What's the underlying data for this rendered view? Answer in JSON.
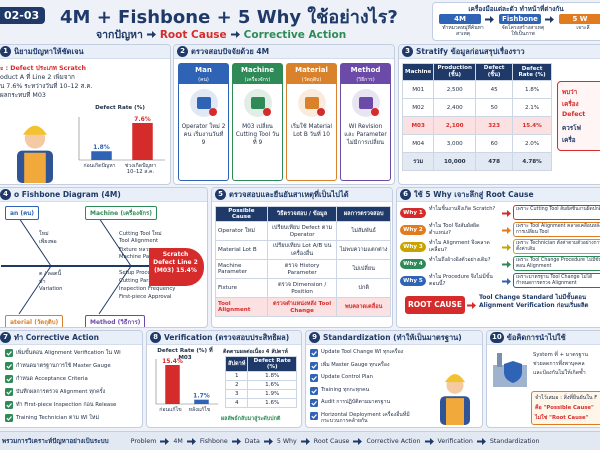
{
  "header": {
    "badge": "02-03",
    "title": "4M + Fishbone + 5 Why ใช้อย่างไร?",
    "flow": [
      "จากปัญหา",
      "Root Cause",
      "Corrective Action"
    ]
  },
  "tools": {
    "title": "เครื่องมือแต่ละตัว ทำหน้าที่ต่างกัน",
    "items": [
      {
        "name": "4M",
        "desc": "ทำหมวดหมู่ที่ค้นหาสาเหตุ"
      },
      {
        "name": "Fishbone",
        "desc": "จัดโครงสร้างสาเหตุให้เป็นภาพ"
      },
      {
        "name": "5 W",
        "desc": "เจาะลึ"
      }
    ]
  },
  "problem": {
    "number": "1",
    "title": "นิยามปัญหาให้ชัดเจน",
    "lines": [
      "ะ : Defect ประเภท Scratch",
      "oduct A ที่ Line 2 เพิ่มจาก",
      "น 7.6% ระหว่างวันที่ 10–12 ส.ค.",
      "ผลกระทบที่ M03"
    ],
    "chart": {
      "type": "bar",
      "title": "Defect Rate (%)",
      "categories": [
        "ก่อนเกิดปัญหา",
        "ช่วงเกิดปัญหา 10–12 ส.ค."
      ],
      "values": [
        1.8,
        7.6
      ],
      "value_labels": [
        "1.8%",
        "7.6%"
      ],
      "colors": [
        "#2f63b5",
        "#d62b2b"
      ]
    }
  },
  "fourM": {
    "number": "2",
    "title": "ตรวจสอบปัจจัยด้วย 4M",
    "columns": [
      {
        "name": "Man",
        "sub": "(คน)",
        "finding": "Operator ใหม่ 2 คน เริ่มงานวันที่ 9"
      },
      {
        "name": "Machine",
        "sub": "(เครื่องจักร)",
        "finding": "M03 เปลี่ยน Cutting Tool วันที่ 9"
      },
      {
        "name": "Material",
        "sub": "(วัตถุดิบ)",
        "finding": "เริ่มใช้ Material Lot B วันที่ 10"
      },
      {
        "name": "Method",
        "sub": "(วิธีการ)",
        "finding": "WI Revision และ Parameter ไม่มีการเปลี่ยน"
      }
    ]
  },
  "stratify": {
    "number": "3",
    "title": "Stratify ข้อมูลก่อนสรุปเรื่องราว",
    "header": [
      "Machine",
      "Production (ชิ้น)",
      "Defect (ชิ้น)",
      "Defect Rate (%)"
    ],
    "rows": [
      [
        "M01",
        "2,500",
        "45",
        "1.8%"
      ],
      [
        "M02",
        "2,400",
        "50",
        "2.1%"
      ],
      [
        "M03",
        "2,100",
        "323",
        "15.4%"
      ],
      [
        "M04",
        "3,000",
        "60",
        "2.0%"
      ],
      [
        "รวม",
        "10,000",
        "478",
        "4.78%"
      ]
    ],
    "note": [
      "พบว่า",
      "เครื่อง",
      "Defect",
      "ควรโฟ",
      "เครื่อ"
    ]
  },
  "fishbone": {
    "number": "4",
    "title": "o Fishbone Diagram (4M)",
    "head": "Scratch Defect Line 2 (M03) 15.4%",
    "bones": [
      {
        "name": "an (คน)",
        "items": [
          "ใหม่",
          "เพียงพอ"
        ]
      },
      {
        "name": "Machine (เครื่องจักร)",
        "items": [
          "Cutting Tool ใหม่",
          "Tool Alignment",
          "Fixture หลวม",
          "Machine Parameter"
        ]
      },
      {
        "name": "aterial (วัตถุดิบ)",
        "items": [
          "ต / ลอตนี้",
          "ข้า",
          "Variation"
        ]
      },
      {
        "name": "Method (วิธีการ)",
        "items": [
          "Setup Procedure",
          "Cutting Parameter",
          "Inspection Frequency",
          "First-piece Approval"
        ]
      }
    ]
  },
  "verify": {
    "number": "5",
    "title": "ตรวจสอบและยืนยันสาเหตุที่เป็นไปได้",
    "header": [
      "Possible Cause",
      "วิธีตรวจสอบ / ข้อมูล",
      "ผลการตรวจสอบ"
    ],
    "rows": [
      [
        "Operator ใหม่",
        "เปรียบเทียบ Defect ตาม Operator",
        "ไม่สัมพันธ์"
      ],
      [
        "Material Lot B",
        "เปรียบเทียบ Lot A/B บนเครื่องอื่น",
        "ไม่พบความแตกต่าง"
      ],
      [
        "Machine Parameter",
        "ตรวจ History Parameter",
        "ไม่เปลี่ยน"
      ],
      [
        "Fixture",
        "ตรวจ Dimension / Position",
        "ปกติ"
      ],
      [
        "Tool Alignment",
        "ตรวจตำแหน่งหลัง Tool Change",
        "พบคลาดเคลื่อน"
      ]
    ]
  },
  "why": {
    "number": "6",
    "title": "ใช้ 5 Why เจาะลึกสู่ Root Cause",
    "steps": [
      {
        "label": "Why 1",
        "q": "ทำไมชิ้นงานจึงเกิด Scratch?",
        "a": "เพราะ Cutting Tool สัมผัสชิ้นงานผิดปกติ"
      },
      {
        "label": "Why 2",
        "q": "ทำไม Tool จึงสัมผัสผิดตำแหน่ง?",
        "a": "เพราะ Tool Alignment คลาดเคลื่อนหลังการเปลี่ยน Tool"
      },
      {
        "label": "Why 3",
        "q": "ทำไม Alignment จึงคลาดเคลื่อน?",
        "a": "เพราะ Technician ตั้งค่าตามตัวอย่างการตั้งค่าเดิม"
      },
      {
        "label": "Why 4",
        "q": "ทำไมถึงอ้างอิงตัวอย่างเดิม?",
        "a": "เพราะ Tool Change Procedure ไม่มีขั้นตอน Alignment"
      },
      {
        "label": "Why 5",
        "q": "ทำไม Procedure จึงไม่มีขั้นตอนนี้?",
        "a": "เพราะมาตรฐาน Tool Change ไม่ได้กำหนดการตรวจ Alignment"
      }
    ],
    "root_label": "ROOT CAUSE",
    "root": "Tool Change Standard ไม่มีขั้นตอน Alignment Verification ก่อนเริ่มผลิต"
  },
  "action": {
    "number": "7",
    "title": "ทำ Corrective Action",
    "items": [
      "เพิ่มขั้นตอน Alignment Verification ใน WI",
      "กำหนดมาตรฐานการใช้ Master Gauge",
      "กำหนด Acceptance Criteria",
      "บันทึกผลการตรวจ Alignment ทุกครั้ง",
      "ทำ First-piece Inspection ก่อน Release",
      "Training Technician ตาม WI ใหม่"
    ]
  },
  "verification": {
    "number": "8",
    "title": "Verification (ตรวจสอบประสิทธิผล)",
    "chart": {
      "type": "bar",
      "title": "Defect Rate (%) ที่ M03",
      "categories": [
        "ก่อนแก้ไข",
        "หลังแก้ไข"
      ],
      "values": [
        15.4,
        1.7
      ],
      "value_labels": [
        "15.4%",
        "1.7%"
      ],
      "colors": [
        "#d62b2b",
        "#2f63b5"
      ]
    },
    "follow": {
      "title": "ติดตามผลต่อเนื่อง 4 สัปดาห์",
      "header": [
        "สัปดาห์",
        "Defect Rate (%)"
      ],
      "rows": [
        [
          "1",
          "1.8%"
        ],
        [
          "2",
          "1.6%"
        ],
        [
          "3",
          "1.9%"
        ],
        [
          "4",
          "1.6%"
        ]
      ]
    },
    "result": "ผลลัพธ์กลับมาสู่ระดับปกติ"
  },
  "standard": {
    "number": "9",
    "title": "Standardization (ทำให้เป็นมาตรฐาน)",
    "items": [
      "Update Tool Change WI ทุกเครื่อง",
      "เพิ่ม Master Gauge ทุกเครื่อง",
      "Update Control Plan",
      "Training ทุกกะทุกคน",
      "Audit การปฏิบัติตามมาตรฐาน",
      "Horizontal Deployment เครื่องอื่นที่มีกระบวนการคล้ายกัน"
    ]
  },
  "lesson": {
    "number": "10",
    "title": "ข้อคิดการนำไปใช้",
    "text": [
      "System ที่ + มาตรฐาน",
      "ช่วยลดการพึ่งพาบุคคล",
      "และป้องกันไม่ให้เกิดซ้ำ"
    ],
    "remember": [
      "จำไว้เสมอ : สิ่งที่ยืนยันใน F",
      "คือ \"Possible Cause\"",
      "ไม่ใช่ \"Root Cause\""
    ]
  },
  "footer": {
    "label": "พรวมการวิเคราะห์ปัญหาอย่างเป็นระบบ",
    "flow": [
      "Problem",
      "4M",
      "Fishbone",
      "Data",
      "5 Why",
      "Root Cause",
      "Corrective Action",
      "Verification",
      "Standardization"
    ]
  }
}
